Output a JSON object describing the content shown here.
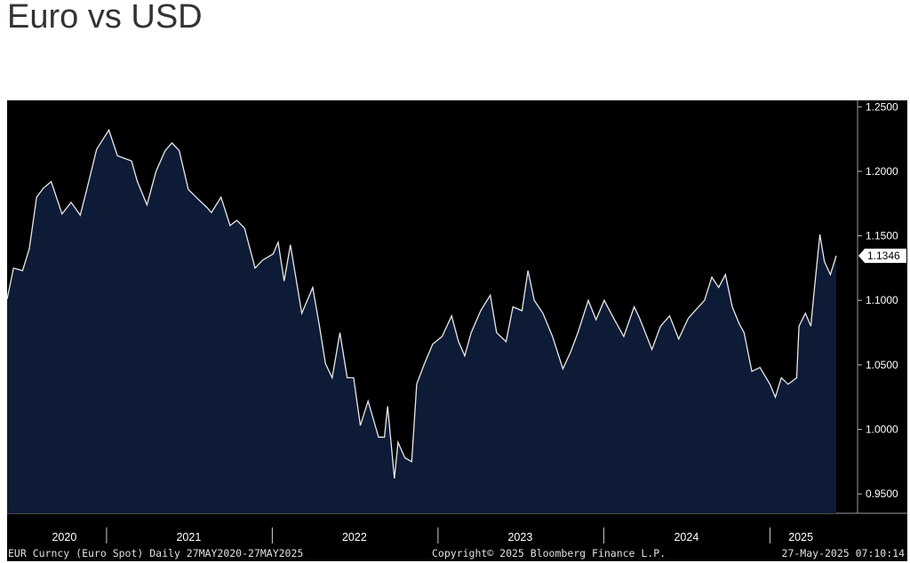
{
  "page": {
    "title": "Euro vs USD"
  },
  "colors": {
    "terminal_background": "#000000",
    "area_fill": "#0d1b36",
    "line": "#e8e8e8",
    "axis_text": "#ffffff",
    "footer_text": "#e0e0e0",
    "last_value_box": "#ffffff"
  },
  "footer": {
    "left": "EUR Curncy (Euro Spot)  Daily 27MAY2020-27MAY2025",
    "center": "Copyright© 2025 Bloomberg Finance L.P.",
    "right": "27-May-2025 07:10:14"
  },
  "chart_data": {
    "type": "area",
    "title": "",
    "xlabel": "",
    "ylabel": "",
    "x_range": [
      "2020-05-27",
      "2025-05-27"
    ],
    "ylim": [
      0.935,
      1.255
    ],
    "y_ticks": [
      "1.2500",
      "1.2000",
      "1.1500",
      "1.1000",
      "1.0500",
      "1.0000",
      "0.9500"
    ],
    "x_tick_labels": [
      {
        "label": "2020",
        "date": "2020-09-30"
      },
      {
        "label": "2021",
        "date": "2021-07-01"
      },
      {
        "label": "2022",
        "date": "2022-07-01"
      },
      {
        "label": "2023",
        "date": "2023-07-01"
      },
      {
        "label": "2024",
        "date": "2024-07-01"
      },
      {
        "label": "2025",
        "date": "2025-03-10"
      }
    ],
    "x_dividers": [
      "2021-01-01",
      "2022-01-01",
      "2023-01-01",
      "2024-01-01",
      "2025-01-01"
    ],
    "last_value": "1.1346",
    "series": [
      {
        "x": [
          "2020-05-27",
          "2020-06-10",
          "2020-06-30",
          "2020-07-15",
          "2020-07-31",
          "2020-08-15",
          "2020-09-01",
          "2020-09-25",
          "2020-10-15",
          "2020-11-04",
          "2020-11-20",
          "2020-12-10",
          "2021-01-06",
          "2021-01-25",
          "2021-02-10",
          "2021-02-25",
          "2021-03-10",
          "2021-03-31",
          "2021-04-20",
          "2021-05-10",
          "2021-05-25",
          "2021-06-10",
          "2021-06-30",
          "2021-07-20",
          "2021-08-10",
          "2021-08-20",
          "2021-09-10",
          "2021-09-30",
          "2021-10-15",
          "2021-11-01",
          "2021-11-24",
          "2021-12-10",
          "2022-01-03",
          "2022-01-14",
          "2022-01-27",
          "2022-02-10",
          "2022-03-07",
          "2022-03-31",
          "2022-04-15",
          "2022-04-28",
          "2022-05-13",
          "2022-05-30",
          "2022-06-15",
          "2022-06-29",
          "2022-07-14",
          "2022-07-31",
          "2022-08-23",
          "2022-09-05",
          "2022-09-12",
          "2022-09-27",
          "2022-10-05",
          "2022-10-20",
          "2022-11-04",
          "2022-11-15",
          "2022-12-01",
          "2022-12-20",
          "2023-01-10",
          "2023-01-31",
          "2023-02-15",
          "2023-03-01",
          "2023-03-15",
          "2023-04-05",
          "2023-04-26",
          "2023-05-10",
          "2023-05-31",
          "2023-06-15",
          "2023-07-05",
          "2023-07-18",
          "2023-08-01",
          "2023-08-20",
          "2023-09-10",
          "2023-10-03",
          "2023-10-20",
          "2023-11-05",
          "2023-11-28",
          "2023-12-15",
          "2024-01-02",
          "2024-01-20",
          "2024-02-14",
          "2024-03-08",
          "2024-03-20",
          "2024-04-16",
          "2024-05-05",
          "2024-05-25",
          "2024-06-14",
          "2024-07-05",
          "2024-07-20",
          "2024-08-10",
          "2024-08-26",
          "2024-09-10",
          "2024-09-25",
          "2024-10-10",
          "2024-10-25",
          "2024-11-05",
          "2024-11-22",
          "2024-12-10",
          "2025-01-01",
          "2025-01-13",
          "2025-01-26",
          "2025-02-10",
          "2025-03-01",
          "2025-03-06",
          "2025-03-20",
          "2025-04-01",
          "2025-04-10",
          "2025-04-21",
          "2025-05-01",
          "2025-05-14",
          "2025-05-27"
        ],
        "y": [
          1.101,
          1.125,
          1.123,
          1.14,
          1.18,
          1.187,
          1.192,
          1.167,
          1.176,
          1.166,
          1.188,
          1.217,
          1.232,
          1.212,
          1.21,
          1.208,
          1.192,
          1.174,
          1.2,
          1.216,
          1.222,
          1.216,
          1.186,
          1.179,
          1.172,
          1.168,
          1.18,
          1.158,
          1.162,
          1.156,
          1.125,
          1.131,
          1.136,
          1.145,
          1.115,
          1.143,
          1.09,
          1.11,
          1.08,
          1.051,
          1.04,
          1.075,
          1.04,
          1.04,
          1.003,
          1.022,
          0.994,
          0.994,
          1.018,
          0.962,
          0.99,
          0.978,
          0.975,
          1.035,
          1.05,
          1.066,
          1.072,
          1.088,
          1.068,
          1.057,
          1.075,
          1.092,
          1.104,
          1.075,
          1.068,
          1.095,
          1.092,
          1.123,
          1.1,
          1.09,
          1.072,
          1.047,
          1.06,
          1.075,
          1.1,
          1.085,
          1.1,
          1.088,
          1.072,
          1.095,
          1.086,
          1.062,
          1.08,
          1.088,
          1.07,
          1.086,
          1.092,
          1.1,
          1.118,
          1.11,
          1.12,
          1.095,
          1.082,
          1.075,
          1.045,
          1.048,
          1.035,
          1.025,
          1.04,
          1.035,
          1.04,
          1.08,
          1.09,
          1.08,
          1.113,
          1.151,
          1.13,
          1.12,
          1.1346
        ]
      }
    ]
  }
}
